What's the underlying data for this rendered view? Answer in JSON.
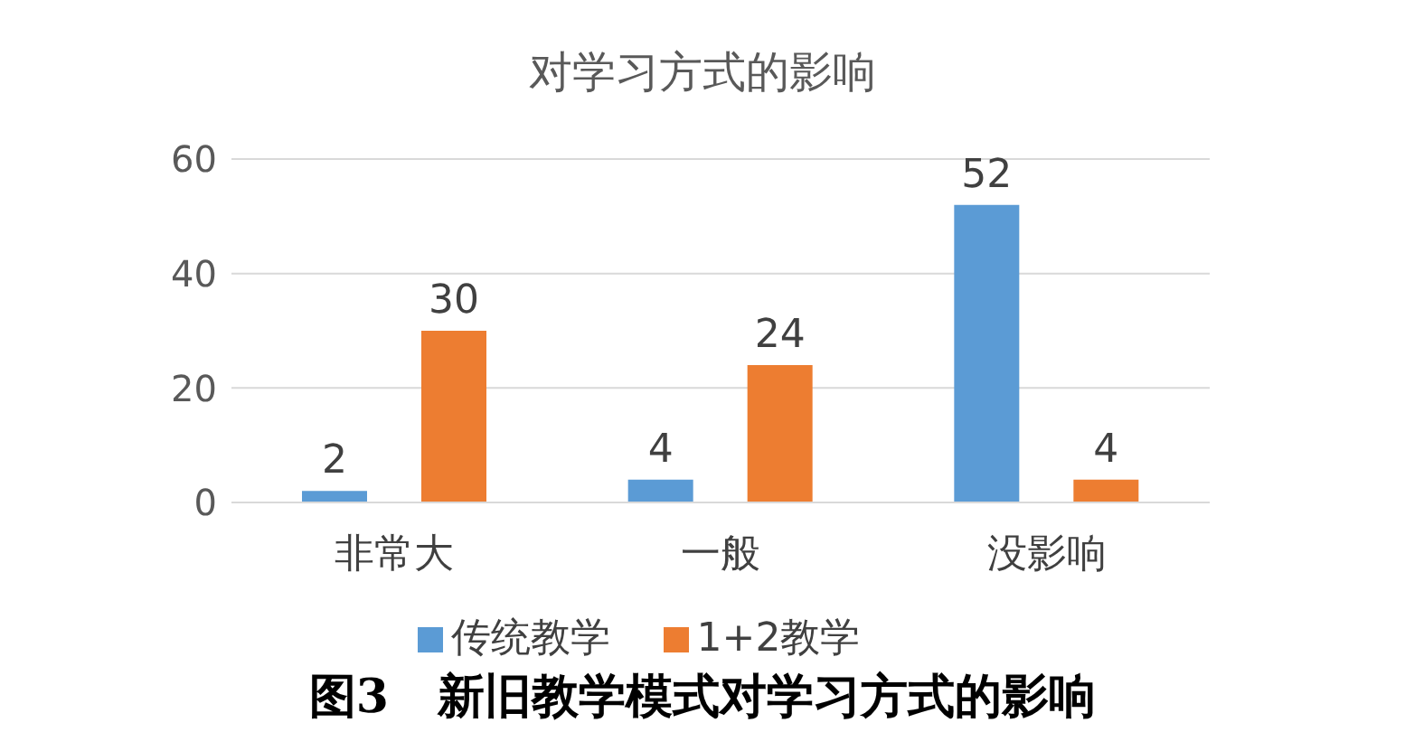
{
  "chart_data": {
    "type": "bar",
    "title": "对学习方式的影响",
    "categories": [
      "非常大",
      "一般",
      "没影响"
    ],
    "series": [
      {
        "name": "传统教学",
        "color": "#5b9bd5",
        "values": [
          2,
          4,
          52
        ]
      },
      {
        "name": "1+2教学",
        "color": "#ed7d31",
        "values": [
          30,
          24,
          4
        ]
      }
    ],
    "ylim": [
      0,
      60
    ],
    "yticks": [
      0,
      20,
      40,
      60
    ],
    "grid": "y",
    "data_labels": true,
    "legend": "bottom",
    "annotations": [
      "图3   新旧教学模式对学习方式的影响"
    ]
  }
}
